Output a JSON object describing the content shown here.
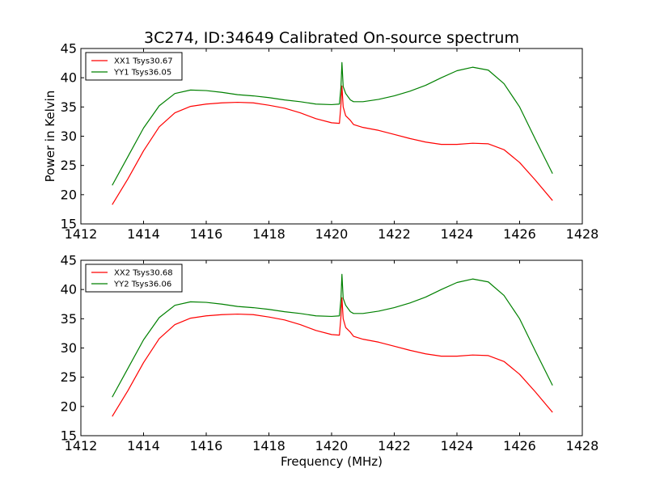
{
  "title": "3C274, ID:34649 Calibrated On-source spectrum",
  "chart_data": [
    {
      "type": "line",
      "xlabel": "",
      "ylabel": "Power in Kelvin",
      "xlim": [
        1412,
        1428
      ],
      "ylim": [
        15,
        45
      ],
      "xticks": [
        1412,
        1414,
        1416,
        1418,
        1420,
        1422,
        1424,
        1426,
        1428
      ],
      "yticks": [
        15,
        20,
        25,
        30,
        35,
        40,
        45
      ],
      "legend": "top-left",
      "grid": false,
      "series": [
        {
          "name": "XX1 Tsys30.67",
          "color": "#ff0000",
          "x": [
            1413.0,
            1413.5,
            1414.0,
            1414.5,
            1415.0,
            1415.5,
            1416.0,
            1416.5,
            1417.0,
            1417.5,
            1418.0,
            1418.5,
            1419.0,
            1419.5,
            1420.0,
            1420.25,
            1420.3,
            1420.33,
            1420.37,
            1420.45,
            1420.6,
            1420.7,
            1421.0,
            1421.5,
            1422.0,
            1422.5,
            1423.0,
            1423.5,
            1424.0,
            1424.5,
            1425.0,
            1425.5,
            1426.0,
            1426.5,
            1427.05
          ],
          "values": [
            18.3,
            22.7,
            27.5,
            31.6,
            34.0,
            35.1,
            35.5,
            35.7,
            35.8,
            35.7,
            35.3,
            34.8,
            34.0,
            33.0,
            32.3,
            32.2,
            35.5,
            38.6,
            35.0,
            33.5,
            32.7,
            32.0,
            31.5,
            31.0,
            30.3,
            29.6,
            29.0,
            28.6,
            28.6,
            28.8,
            28.7,
            27.7,
            25.5,
            22.5,
            19.0
          ]
        },
        {
          "name": "YY1 Tsys36.05",
          "color": "#008000",
          "x": [
            1413.0,
            1413.5,
            1414.0,
            1414.5,
            1415.0,
            1415.5,
            1416.0,
            1416.5,
            1417.0,
            1417.5,
            1418.0,
            1418.5,
            1419.0,
            1419.5,
            1420.0,
            1420.25,
            1420.3,
            1420.33,
            1420.37,
            1420.45,
            1420.6,
            1420.7,
            1421.0,
            1421.5,
            1422.0,
            1422.5,
            1423.0,
            1423.5,
            1424.0,
            1424.5,
            1425.0,
            1425.5,
            1426.0,
            1426.5,
            1427.05
          ],
          "values": [
            21.6,
            26.5,
            31.4,
            35.2,
            37.3,
            37.9,
            37.8,
            37.5,
            37.1,
            36.9,
            36.6,
            36.2,
            35.9,
            35.5,
            35.4,
            35.5,
            38.5,
            42.6,
            38.5,
            37.3,
            36.2,
            35.9,
            35.9,
            36.3,
            36.9,
            37.7,
            38.7,
            40.0,
            41.2,
            41.8,
            41.3,
            39.0,
            35.0,
            29.5,
            23.6
          ]
        }
      ]
    },
    {
      "type": "line",
      "xlabel": "Frequency (MHz)",
      "ylabel": "",
      "xlim": [
        1412,
        1428
      ],
      "ylim": [
        15,
        45
      ],
      "xticks": [
        1412,
        1414,
        1416,
        1418,
        1420,
        1422,
        1424,
        1426,
        1428
      ],
      "yticks": [
        15,
        20,
        25,
        30,
        35,
        40,
        45
      ],
      "legend": "top-left",
      "grid": false,
      "series": [
        {
          "name": "XX2 Tsys30.68",
          "color": "#ff0000",
          "x": [
            1413.0,
            1413.5,
            1414.0,
            1414.5,
            1415.0,
            1415.5,
            1416.0,
            1416.5,
            1417.0,
            1417.5,
            1418.0,
            1418.5,
            1419.0,
            1419.5,
            1420.0,
            1420.25,
            1420.3,
            1420.33,
            1420.37,
            1420.45,
            1420.6,
            1420.7,
            1421.0,
            1421.5,
            1422.0,
            1422.5,
            1423.0,
            1423.5,
            1424.0,
            1424.5,
            1425.0,
            1425.5,
            1426.0,
            1426.5,
            1427.05
          ],
          "values": [
            18.3,
            22.7,
            27.5,
            31.6,
            34.0,
            35.1,
            35.5,
            35.7,
            35.8,
            35.7,
            35.3,
            34.8,
            34.0,
            33.0,
            32.3,
            32.2,
            35.5,
            38.6,
            35.0,
            33.5,
            32.7,
            32.0,
            31.5,
            31.0,
            30.3,
            29.6,
            29.0,
            28.6,
            28.6,
            28.8,
            28.7,
            27.7,
            25.5,
            22.5,
            19.0
          ]
        },
        {
          "name": "YY2 Tsys36.06",
          "color": "#008000",
          "x": [
            1413.0,
            1413.5,
            1414.0,
            1414.5,
            1415.0,
            1415.5,
            1416.0,
            1416.5,
            1417.0,
            1417.5,
            1418.0,
            1418.5,
            1419.0,
            1419.5,
            1420.0,
            1420.25,
            1420.3,
            1420.33,
            1420.37,
            1420.45,
            1420.6,
            1420.7,
            1421.0,
            1421.5,
            1422.0,
            1422.5,
            1423.0,
            1423.5,
            1424.0,
            1424.5,
            1425.0,
            1425.5,
            1426.0,
            1426.5,
            1427.05
          ],
          "values": [
            21.6,
            26.5,
            31.4,
            35.2,
            37.3,
            37.9,
            37.8,
            37.5,
            37.1,
            36.9,
            36.6,
            36.2,
            35.9,
            35.5,
            35.4,
            35.5,
            38.5,
            42.6,
            38.5,
            37.3,
            36.2,
            35.9,
            35.9,
            36.3,
            36.9,
            37.7,
            38.7,
            40.0,
            41.2,
            41.8,
            41.3,
            39.0,
            35.0,
            29.5,
            23.6
          ]
        }
      ]
    }
  ]
}
